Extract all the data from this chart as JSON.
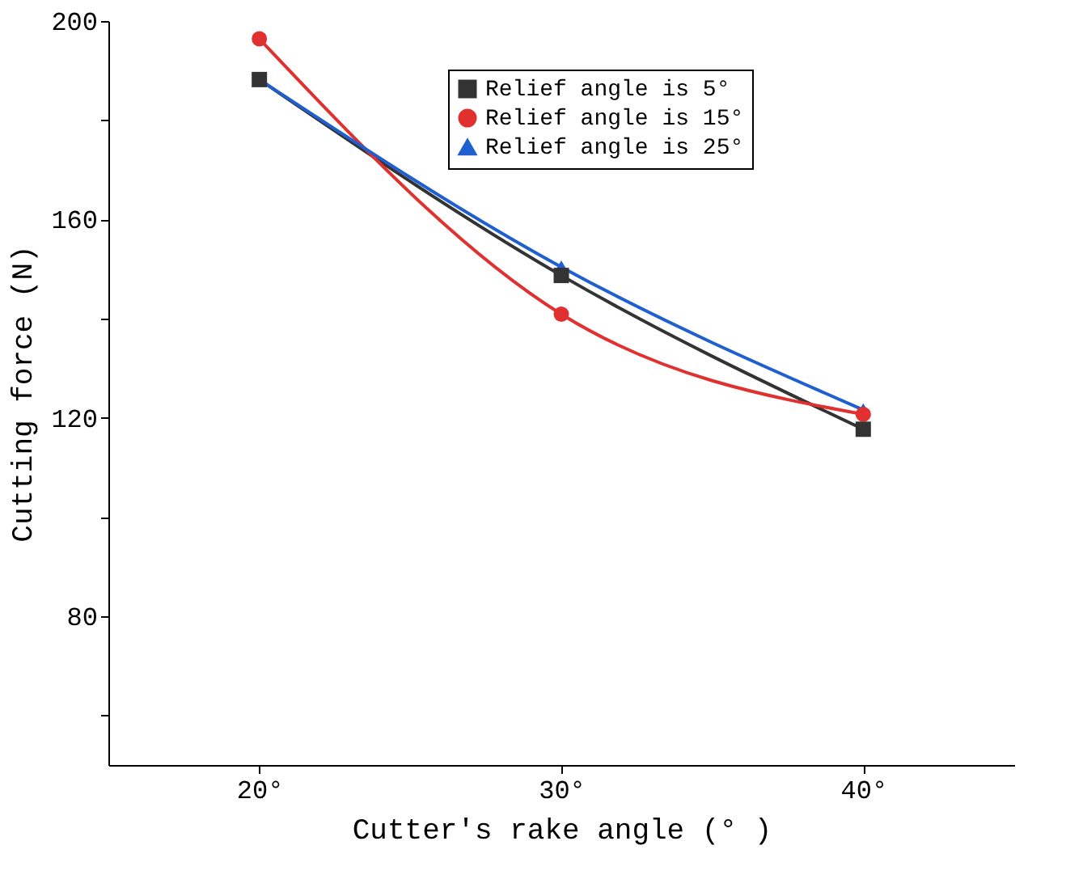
{
  "chart_data": {
    "type": "line",
    "xlabel": "Cutter's rake angle (° )",
    "ylabel": "Cutting force (N)",
    "x": [
      20,
      30,
      40
    ],
    "series": [
      {
        "name": "Relief angle is 5°",
        "color": "#333333",
        "marker": "square",
        "values": [
          188.2,
          148.7,
          117.7
        ]
      },
      {
        "name": "Relief angle is 15°",
        "color": "#e03030",
        "marker": "circle",
        "values": [
          196.4,
          140.9,
          120.7
        ]
      },
      {
        "name": "Relief angle is 25°",
        "color": "#1f5fd0",
        "marker": "triangle",
        "values": [
          188.2,
          150.4,
          121.6
        ]
      }
    ],
    "xlim": [
      15,
      45
    ],
    "xticks": [
      {
        "value": 20,
        "label": "20°"
      },
      {
        "value": 30,
        "label": "30°"
      },
      {
        "value": 40,
        "label": "40°"
      }
    ],
    "ylim": [
      50,
      200
    ],
    "yticks": [
      {
        "value": 60,
        "label": null
      },
      80,
      {
        "value": 100,
        "label": null
      },
      120,
      {
        "value": 140,
        "label": null
      },
      160,
      {
        "value": 180,
        "label": null
      },
      200
    ],
    "grid": false,
    "legend": "top right",
    "line_style": "solid"
  }
}
